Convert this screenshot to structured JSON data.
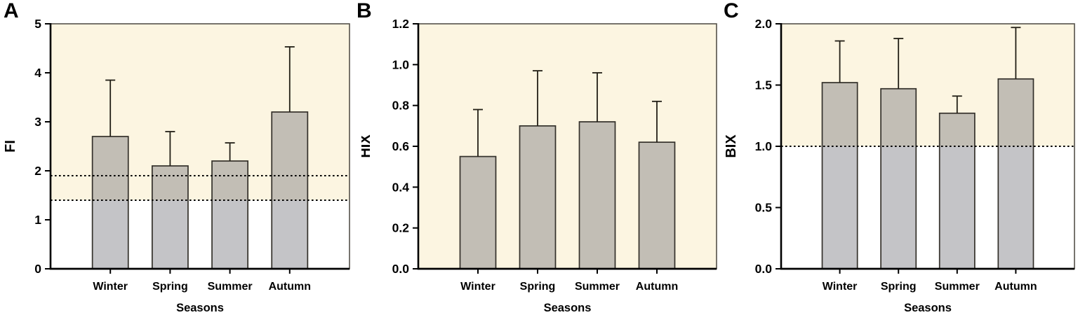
{
  "figure": {
    "panel_labels": [
      "A",
      "B",
      "C"
    ]
  },
  "colors": {
    "band_fill": "#fcf5e1",
    "bar_fill": "rgba(115,115,121,0.42)",
    "bar_gray_appearance": "#c5c5cb",
    "bar_tan_appearance": "#c5bfac",
    "bar_stroke": "#33302a",
    "error_color": "#221f16",
    "frame_color": "#55524a",
    "axis_color": "#000000",
    "ref_line_color": "#000000",
    "text_color": "#000000"
  },
  "chart_data": [
    {
      "type": "bar",
      "title": "",
      "xlabel": "Seasons",
      "ylabel": "FI",
      "categories": [
        "Winter",
        "Spring",
        "Summer",
        "Autumn"
      ],
      "values": [
        2.7,
        2.1,
        2.2,
        3.2
      ],
      "upper_errors": [
        1.15,
        0.7,
        0.37,
        1.33
      ],
      "ylim": [
        0,
        5
      ],
      "yticks": [
        0,
        1,
        2,
        3,
        4,
        5
      ],
      "ytick_labels": [
        "0",
        "1",
        "2",
        "3",
        "4",
        "5"
      ],
      "reference_lines": [
        1.9,
        1.4
      ],
      "shaded_band": [
        1.4,
        5
      ],
      "grid": false,
      "legend": "none"
    },
    {
      "type": "bar",
      "title": "",
      "xlabel": "Seasons",
      "ylabel": "HIX",
      "categories": [
        "Winter",
        "Spring",
        "Summer",
        "Autumn"
      ],
      "values": [
        0.55,
        0.7,
        0.72,
        0.62
      ],
      "upper_errors": [
        0.23,
        0.27,
        0.24,
        0.2
      ],
      "ylim": [
        0,
        1.2
      ],
      "yticks": [
        0,
        0.2,
        0.4,
        0.6,
        0.8,
        1.0,
        1.2
      ],
      "ytick_labels": [
        "0.0",
        "0.2",
        "0.4",
        "0.6",
        "0.8",
        "1.0",
        "1.2"
      ],
      "reference_lines": [],
      "shaded_band": [
        0,
        1.2
      ],
      "grid": false,
      "legend": "none"
    },
    {
      "type": "bar",
      "title": "",
      "xlabel": "Seasons",
      "ylabel": "BIX",
      "categories": [
        "Winter",
        "Spring",
        "Summer",
        "Autumn"
      ],
      "values": [
        1.52,
        1.47,
        1.27,
        1.55
      ],
      "upper_errors": [
        0.34,
        0.41,
        0.14,
        0.42
      ],
      "ylim": [
        0,
        2.0
      ],
      "yticks": [
        0,
        0.5,
        1.0,
        1.5,
        2.0
      ],
      "ytick_labels": [
        "0.0",
        "0.5",
        "1.0",
        "1.5",
        "2.0"
      ],
      "reference_lines": [
        1.0
      ],
      "shaded_band": [
        1.0,
        2.0
      ],
      "grid": false,
      "legend": "none"
    }
  ]
}
